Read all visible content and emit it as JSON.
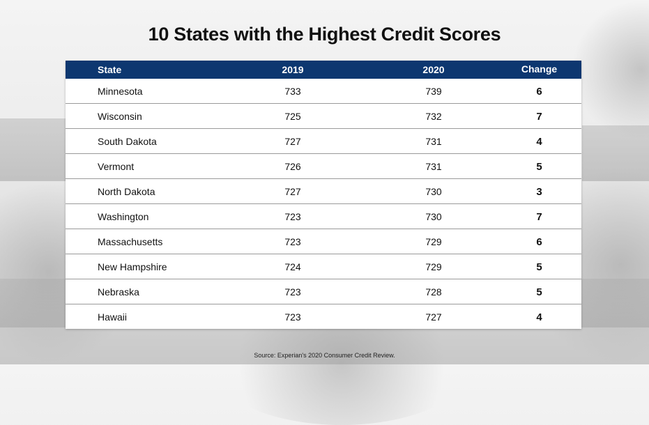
{
  "title": "10 States with the Highest Credit Scores",
  "source": "Source:  Experian's 2020 Consumer Credit Review.",
  "chart_data": {
    "type": "table",
    "title": "10 States with the Highest Credit Scores",
    "columns": [
      "State",
      "2019",
      "2020",
      "Change"
    ],
    "rows": [
      {
        "state": "Minnesota",
        "y2019": "733",
        "y2020": "739",
        "change": "6"
      },
      {
        "state": "Wisconsin",
        "y2019": "725",
        "y2020": "732",
        "change": "7"
      },
      {
        "state": "South Dakota",
        "y2019": "727",
        "y2020": "731",
        "change": "4"
      },
      {
        "state": "Vermont",
        "y2019": "726",
        "y2020": "731",
        "change": "5"
      },
      {
        "state": "North Dakota",
        "y2019": "727",
        "y2020": "730",
        "change": "3"
      },
      {
        "state": "Washington",
        "y2019": "723",
        "y2020": "730",
        "change": "7"
      },
      {
        "state": "Massachusetts",
        "y2019": "723",
        "y2020": "729",
        "change": "6"
      },
      {
        "state": "New Hampshire",
        "y2019": "724",
        "y2020": "729",
        "change": "5"
      },
      {
        "state": "Nebraska",
        "y2019": "723",
        "y2020": "728",
        "change": "5"
      },
      {
        "state": "Hawaii",
        "y2019": "723",
        "y2020": "727",
        "change": "4"
      }
    ]
  },
  "colors": {
    "header_bg": "#0d3770",
    "header_text": "#ffffff"
  }
}
